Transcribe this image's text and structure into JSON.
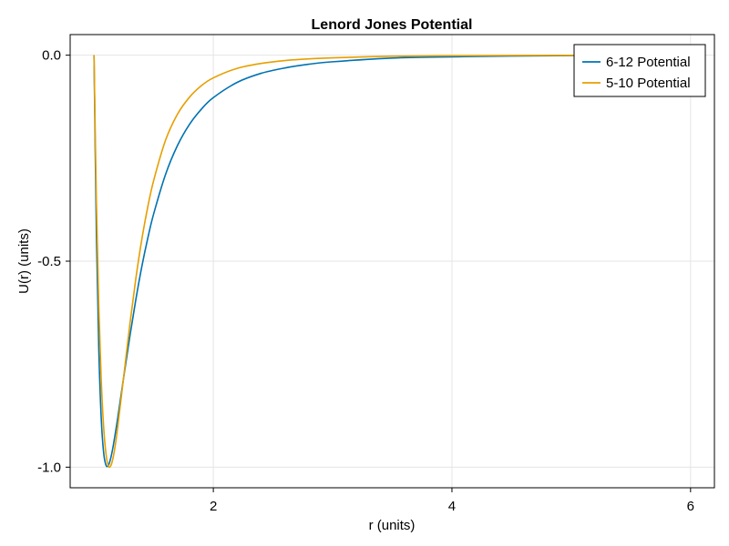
{
  "chart_data": {
    "type": "line",
    "title": "Lenord Jones Potential",
    "xlabel": "r (units)",
    "ylabel": "U(r)  (units)",
    "xlim": [
      0.8,
      6.2
    ],
    "ylim": [
      -1.05,
      0.05
    ],
    "xticks": [
      2,
      4,
      6
    ],
    "xtick_labels": [
      "2",
      "4",
      "6"
    ],
    "yticks": [
      0.0,
      -0.5,
      -1.0
    ],
    "ytick_labels": [
      "0.0",
      "-0.5",
      "-1.0"
    ],
    "grid": true,
    "legend_position": "top-right",
    "series": [
      {
        "name": "6-12 Potential",
        "color": "#0072b2",
        "x": [
          1.0,
          1.02,
          1.04,
          1.06,
          1.08,
          1.1,
          1.12,
          1.14,
          1.16,
          1.18,
          1.2,
          1.25,
          1.3,
          1.35,
          1.4,
          1.45,
          1.5,
          1.6,
          1.7,
          1.8,
          1.9,
          2.0,
          2.2,
          2.4,
          2.6,
          2.8,
          3.0,
          3.5,
          4.0,
          4.5,
          5.0,
          5.5,
          6.0
        ],
        "y": [
          0.0,
          -0.435,
          -0.714,
          -0.879,
          -0.963,
          -0.995,
          -0.996,
          -0.978,
          -0.95,
          -0.915,
          -0.878,
          -0.779,
          -0.683,
          -0.594,
          -0.514,
          -0.445,
          -0.385,
          -0.289,
          -0.219,
          -0.168,
          -0.131,
          -0.103,
          -0.066,
          -0.044,
          -0.031,
          -0.022,
          -0.016,
          -0.007,
          -0.004,
          -0.002,
          -0.001,
          -0.001,
          0.0
        ],
        "values": [
          0.0,
          -0.435,
          -0.714,
          -0.879,
          -0.963,
          -0.995,
          -0.996,
          -0.978,
          -0.95,
          -0.915,
          -0.878,
          -0.779,
          -0.683,
          -0.594,
          -0.514,
          -0.445,
          -0.385,
          -0.289,
          -0.219,
          -0.168,
          -0.131,
          -0.103,
          -0.066,
          -0.044,
          -0.031,
          -0.022,
          -0.016,
          -0.007,
          -0.004,
          -0.002,
          -0.001,
          -0.001,
          0.0
        ]
      },
      {
        "name": "5-10 Potential",
        "color": "#e69f00",
        "x": [
          1.0,
          1.02,
          1.04,
          1.06,
          1.08,
          1.1,
          1.12,
          1.14,
          1.16,
          1.18,
          1.2,
          1.25,
          1.3,
          1.35,
          1.4,
          1.45,
          1.5,
          1.6,
          1.7,
          1.8,
          1.9,
          2.0,
          2.2,
          2.4,
          2.6,
          2.8,
          3.0,
          3.5,
          4.0,
          4.5,
          5.0,
          5.5,
          6.0
        ],
        "y": [
          0.0,
          -0.356,
          -0.61,
          -0.785,
          -0.9,
          -0.967,
          -0.997,
          -0.997,
          -0.977,
          -0.943,
          -0.899,
          -0.777,
          -0.654,
          -0.543,
          -0.448,
          -0.369,
          -0.304,
          -0.206,
          -0.143,
          -0.102,
          -0.074,
          -0.055,
          -0.032,
          -0.02,
          -0.013,
          -0.009,
          -0.0065,
          -0.0026,
          -0.0013,
          -0.0006,
          -0.0003,
          -0.0002,
          -0.0001
        ],
        "values": [
          0.0,
          -0.356,
          -0.61,
          -0.785,
          -0.9,
          -0.967,
          -0.997,
          -0.997,
          -0.977,
          -0.943,
          -0.899,
          -0.777,
          -0.654,
          -0.543,
          -0.448,
          -0.369,
          -0.304,
          -0.206,
          -0.143,
          -0.102,
          -0.074,
          -0.055,
          -0.032,
          -0.02,
          -0.013,
          -0.009,
          -0.0065,
          -0.0026,
          -0.0013,
          -0.0006,
          -0.0003,
          -0.0002,
          -0.0001
        ]
      }
    ]
  }
}
